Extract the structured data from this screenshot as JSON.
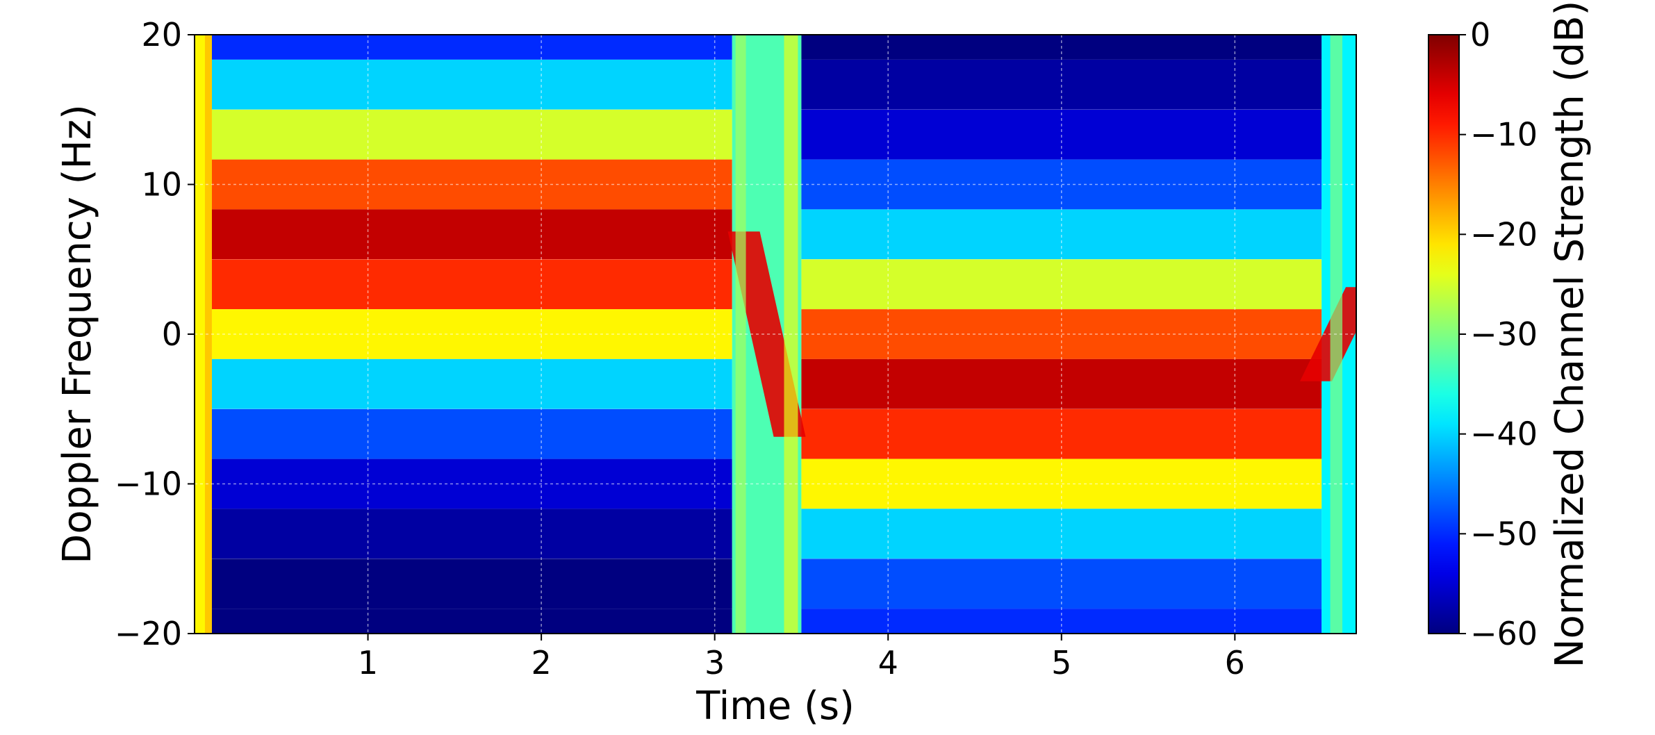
{
  "chart_data": {
    "type": "heatmap",
    "title": "",
    "xlabel": "Time (s)",
    "ylabel": "Doppler Frequency (Hz)",
    "xlim": [
      0,
      6.7
    ],
    "ylim": [
      -20,
      20
    ],
    "x_ticks": [
      1,
      2,
      3,
      4,
      5,
      6
    ],
    "x_tick_labels": [
      "1",
      "2",
      "3",
      "4",
      "5",
      "6"
    ],
    "y_ticks": [
      -20,
      -10,
      0,
      10,
      20
    ],
    "y_tick_labels": [
      "−20",
      "−10",
      "0",
      "10",
      "20"
    ],
    "grid": true,
    "colormap": "jet",
    "colorbar": {
      "label": "Normalized Channel Strength (dB)",
      "range": [
        -60,
        0
      ],
      "ticks": [
        0,
        -10,
        -20,
        -30,
        -40,
        -50,
        -60
      ],
      "tick_labels": [
        "0",
        "−10",
        "−20",
        "−30",
        "−40",
        "−50",
        "−60"
      ]
    },
    "doppler_bins_hz": [
      20,
      16.67,
      13.33,
      10,
      6.67,
      3.33,
      0,
      -3.33,
      -6.67,
      -10,
      -13.33,
      -16.67,
      -20
    ],
    "segments": [
      {
        "time_range_s": [
          0.1,
          3.1
        ],
        "peak_doppler_hz": 5,
        "strength_db": [
          -50,
          -40,
          -25,
          -12,
          -4,
          -10,
          -22,
          -40,
          -48,
          -55,
          -58,
          -60,
          -60
        ]
      },
      {
        "time_range_s": [
          3.5,
          6.5
        ],
        "peak_doppler_hz": -5,
        "strength_db": [
          -60,
          -58,
          -55,
          -48,
          -40,
          -25,
          -12,
          -4,
          -10,
          -22,
          -40,
          -48,
          -50
        ]
      }
    ],
    "transitions": [
      {
        "time_s": 3.3,
        "from_doppler_hz": 5,
        "to_doppler_hz": -5
      },
      {
        "time_s": 6.6,
        "from_doppler_hz": -5,
        "to_doppler_hz": 5
      }
    ]
  }
}
